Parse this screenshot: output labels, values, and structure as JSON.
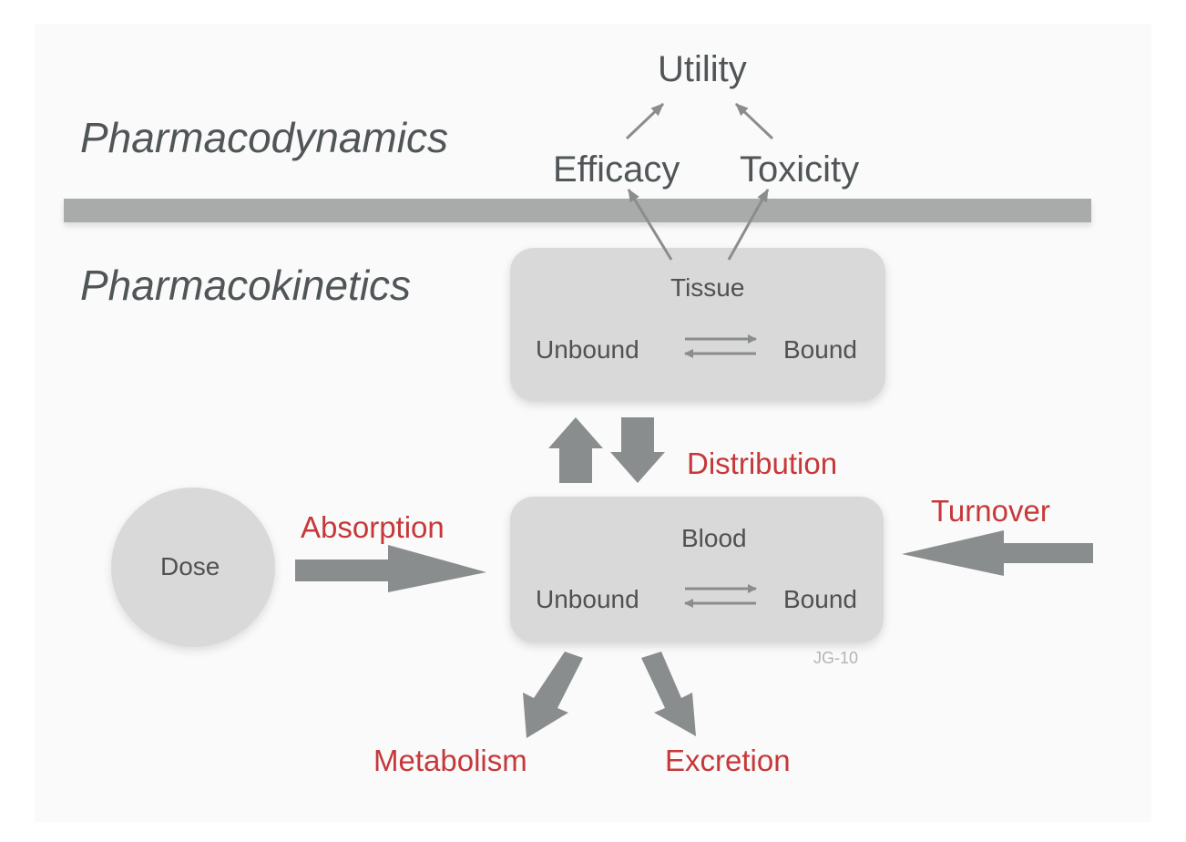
{
  "sections": {
    "pharmacodynamics": "Pharmacodynamics",
    "pharmacokinetics": "Pharmacokinetics"
  },
  "pd_nodes": {
    "utility": "Utility",
    "efficacy": "Efficacy",
    "toxicity": "Toxicity"
  },
  "compartments": {
    "tissue": {
      "title": "Tissue",
      "unbound": "Unbound",
      "bound": "Bound"
    },
    "blood": {
      "title": "Blood",
      "unbound": "Unbound",
      "bound": "Bound"
    }
  },
  "dose": "Dose",
  "processes": {
    "absorption": "Absorption",
    "distribution": "Distribution",
    "turnover": "Turnover",
    "metabolism": "Metabolism",
    "excretion": "Excretion"
  },
  "signature": "JG-10",
  "colors": {
    "text_dark": "#505658",
    "process_red": "#c6383a",
    "arrow_gray": "#8a8d8e",
    "box_fill": "#d9d9d9",
    "divider": "#a9abab"
  }
}
